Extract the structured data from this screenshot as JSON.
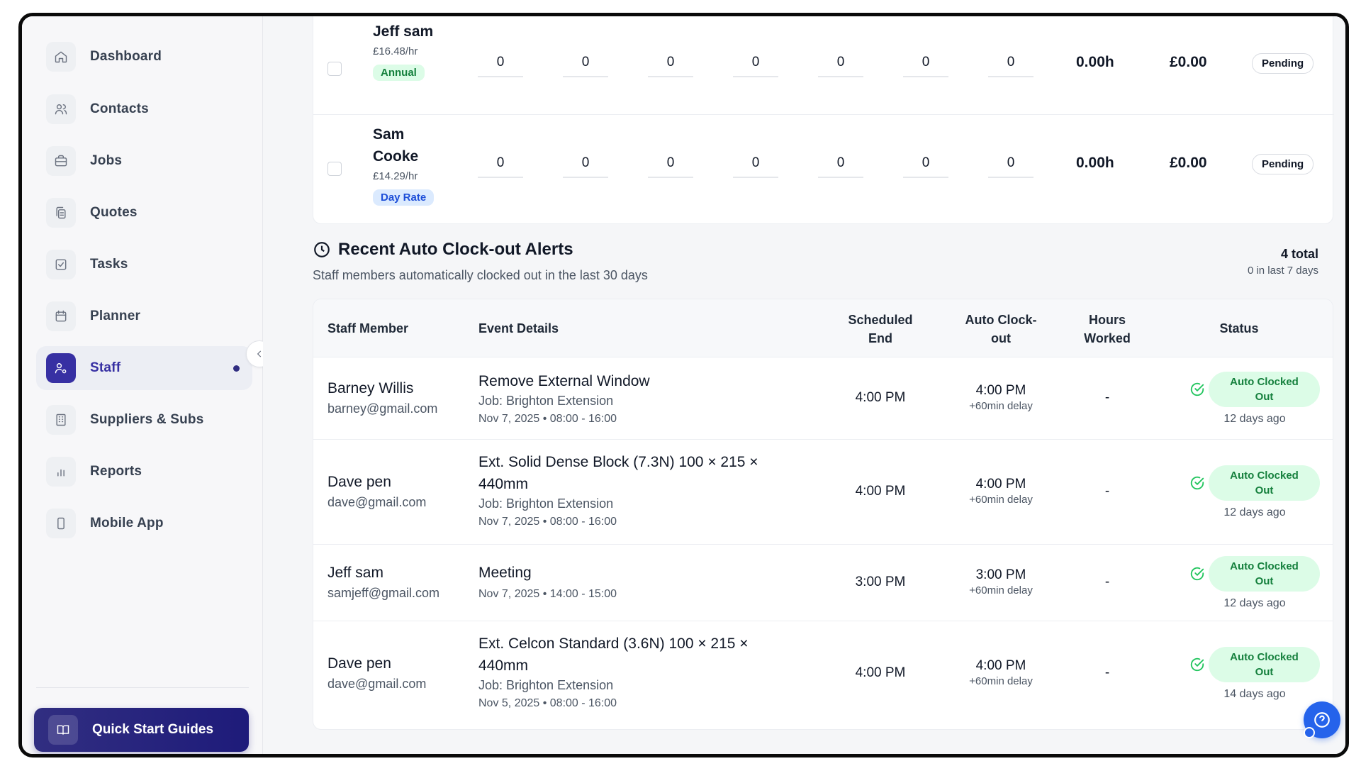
{
  "sidebar": {
    "items": [
      {
        "label": "Dashboard",
        "icon": "home-icon"
      },
      {
        "label": "Contacts",
        "icon": "users-icon"
      },
      {
        "label": "Jobs",
        "icon": "briefcase-icon"
      },
      {
        "label": "Quotes",
        "icon": "copy-icon"
      },
      {
        "label": "Tasks",
        "icon": "checkbox-icon"
      },
      {
        "label": "Planner",
        "icon": "calendar-icon"
      },
      {
        "label": "Staff",
        "icon": "user-settings-icon",
        "active": true
      },
      {
        "label": "Suppliers & Subs",
        "icon": "building-icon"
      },
      {
        "label": "Reports",
        "icon": "bar-chart-icon"
      },
      {
        "label": "Mobile App",
        "icon": "smartphone-icon"
      }
    ],
    "quick_start_label": "Quick Start Guides"
  },
  "rates": {
    "rows": [
      {
        "name": "Jeff sam",
        "rate": "£16.48/hr",
        "tag": "Annual",
        "days": [
          "0",
          "0",
          "0",
          "0",
          "0",
          "0",
          "0"
        ],
        "hours": "0.00h",
        "amount": "£0.00",
        "status": "Pending"
      },
      {
        "name": "Sam Cooke",
        "rate": "£14.29/hr",
        "tag": "Day Rate",
        "days": [
          "0",
          "0",
          "0",
          "0",
          "0",
          "0",
          "0"
        ],
        "hours": "0.00h",
        "amount": "£0.00",
        "status": "Pending"
      }
    ]
  },
  "alerts": {
    "title": "Recent Auto Clock-out Alerts",
    "subtitle": "Staff members automatically clocked out in the last 30 days",
    "total": "4 total",
    "recent": "0 in last 7 days",
    "columns": {
      "staff": "Staff Member",
      "event": "Event Details",
      "scheduled_1": "Scheduled",
      "scheduled_2": "End",
      "auto_1": "Auto Clock-",
      "auto_2": "out",
      "hours_1": "Hours",
      "hours_2": "Worked",
      "status": "Status"
    },
    "rows": [
      {
        "name": "Barney Willis",
        "email": "barney@gmail.com",
        "event_1": "Remove External Window",
        "event_2": "",
        "job": "Job: Brighton Extension",
        "date": "Nov 7, 2025 • 08:00 - 16:00",
        "scheduled": "4:00 PM",
        "auto": "4:00 PM",
        "delay": "+60min delay",
        "hours": "-",
        "status_1": "Auto Clocked",
        "status_2": "Out",
        "ago": "12 days ago"
      },
      {
        "name": "Dave pen",
        "email": "dave@gmail.com",
        "event_1": "Ext. Solid Dense Block (7.3N) 100 × 215 ×",
        "event_2": "440mm",
        "job": "Job: Brighton Extension",
        "date": "Nov 7, 2025 • 08:00 - 16:00",
        "scheduled": "4:00 PM",
        "auto": "4:00 PM",
        "delay": "+60min delay",
        "hours": "-",
        "status_1": "Auto Clocked",
        "status_2": "Out",
        "ago": "12 days ago"
      },
      {
        "name": "Jeff sam",
        "email": "samjeff@gmail.com",
        "event_1": "Meeting",
        "event_2": "",
        "job": "",
        "date": "Nov 7, 2025 • 14:00 - 15:00",
        "scheduled": "3:00 PM",
        "auto": "3:00 PM",
        "delay": "+60min delay",
        "hours": "-",
        "status_1": "Auto Clocked",
        "status_2": "Out",
        "ago": "12 days ago"
      },
      {
        "name": "Dave pen",
        "email": "dave@gmail.com",
        "event_1": "Ext. Celcon Standard (3.6N) 100 × 215 ×",
        "event_2": "440mm",
        "job": "Job: Brighton Extension",
        "date": "Nov 5, 2025 • 08:00 - 16:00",
        "scheduled": "4:00 PM",
        "auto": "4:00 PM",
        "delay": "+60min delay",
        "hours": "-",
        "status_1": "Auto Clocked",
        "status_2": "Out",
        "ago": "14 days ago"
      }
    ]
  },
  "colors": {
    "accent": "#312e81",
    "success": "#15803d",
    "help": "#2563eb"
  }
}
